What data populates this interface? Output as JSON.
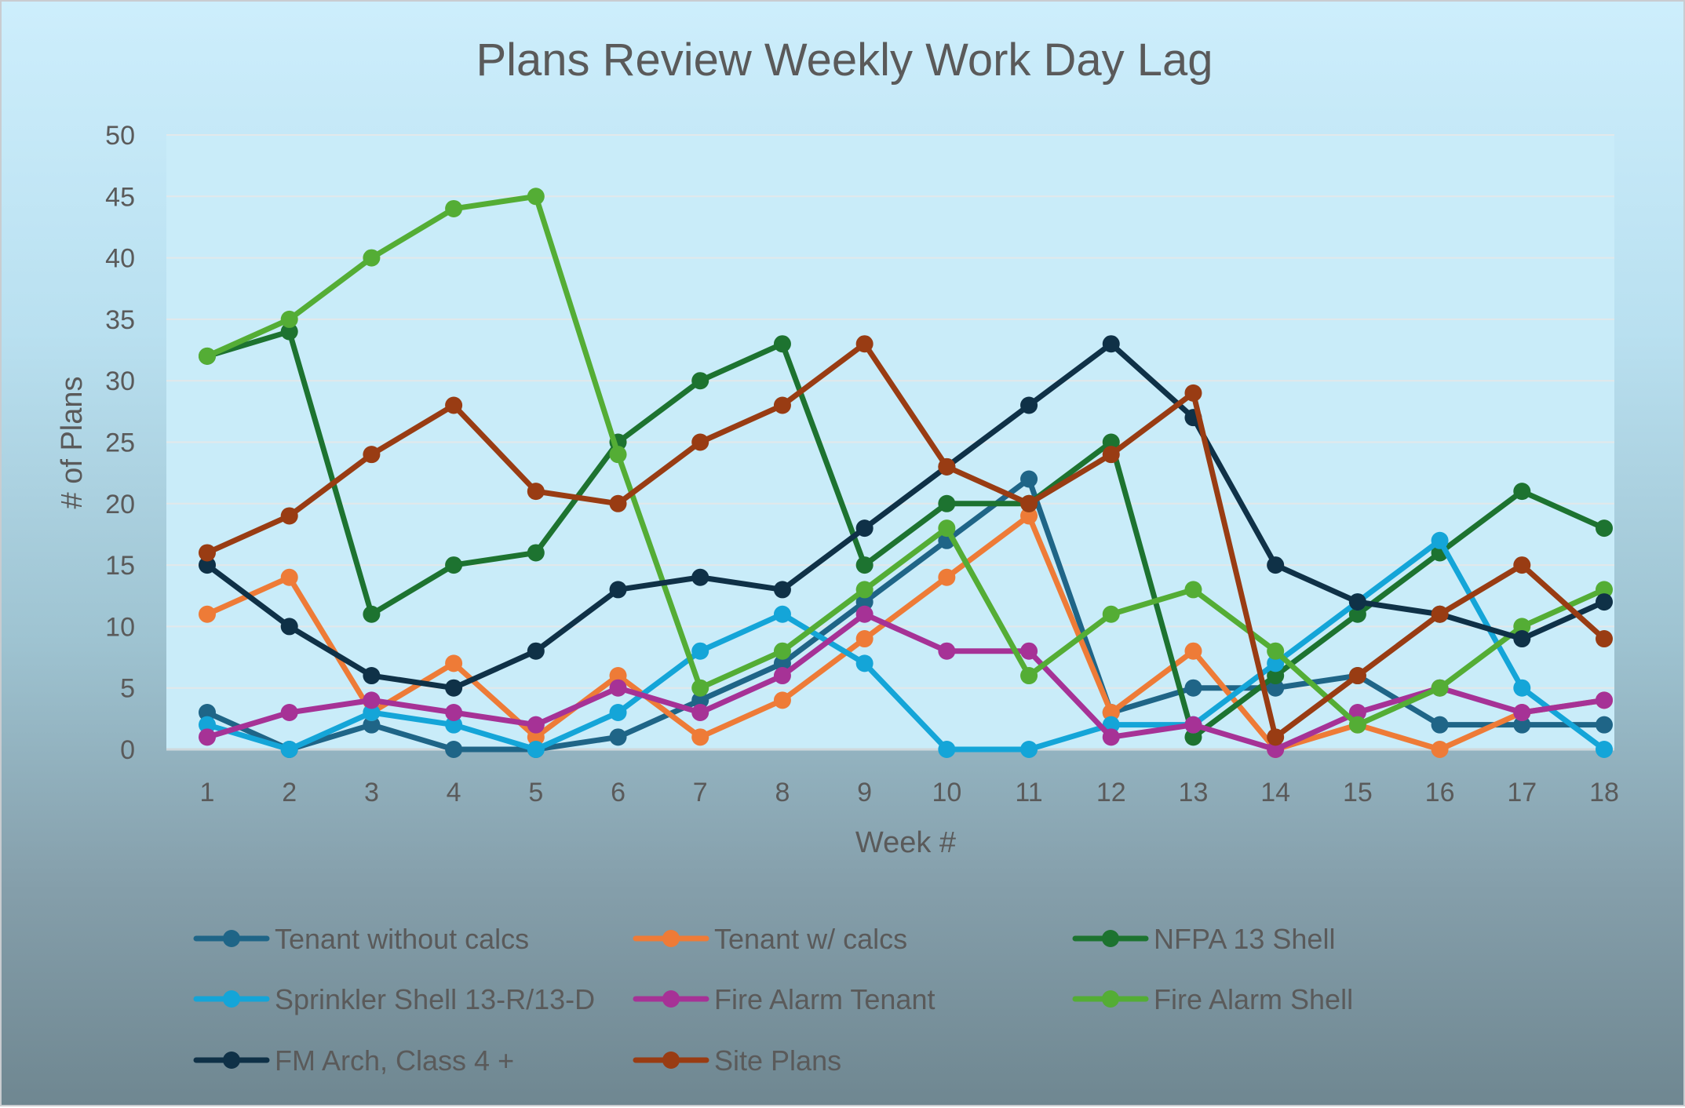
{
  "chart_data": {
    "type": "line",
    "title": "Plans Review Weekly Work Day Lag",
    "xlabel": "Week #",
    "ylabel": "# of Plans",
    "x": [
      1,
      2,
      3,
      4,
      5,
      6,
      7,
      8,
      9,
      10,
      11,
      12,
      13,
      14,
      15,
      16,
      17,
      18
    ],
    "ylim": [
      0,
      50
    ],
    "yticks": [
      0,
      5,
      10,
      15,
      20,
      25,
      30,
      35,
      40,
      45,
      50
    ],
    "grid": "horizontal",
    "legend_position": "bottom",
    "series": [
      {
        "name": "Tenant without calcs",
        "color": "#1f6587",
        "values": [
          3,
          0,
          2,
          0,
          0,
          1,
          4,
          7,
          12,
          17,
          22,
          3,
          5,
          5,
          6,
          2,
          2,
          2
        ]
      },
      {
        "name": "Tenant w/ calcs",
        "color": "#ee7b37",
        "values": [
          11,
          14,
          3,
          7,
          1,
          6,
          1,
          4,
          9,
          14,
          19,
          3,
          8,
          0,
          2,
          0,
          3,
          4
        ]
      },
      {
        "name": "NFPA 13 Shell",
        "color": "#1d7330",
        "values": [
          32,
          34,
          11,
          15,
          16,
          25,
          30,
          33,
          15,
          20,
          20,
          25,
          1,
          6,
          11,
          16,
          21,
          18
        ]
      },
      {
        "name": "Sprinkler Shell 13-R/13-D",
        "color": "#14a5d8",
        "values": [
          2,
          0,
          3,
          2,
          0,
          3,
          8,
          11,
          7,
          0,
          0,
          2,
          2,
          7,
          12,
          17,
          5,
          0
        ]
      },
      {
        "name": "Fire Alarm Tenant",
        "color": "#a63296",
        "values": [
          1,
          3,
          4,
          3,
          2,
          5,
          3,
          6,
          11,
          8,
          8,
          1,
          2,
          0,
          3,
          5,
          3,
          4
        ]
      },
      {
        "name": "Fire Alarm Shell",
        "color": "#54ad35",
        "values": [
          32,
          35,
          40,
          44,
          45,
          24,
          5,
          8,
          13,
          18,
          6,
          11,
          13,
          8,
          2,
          5,
          10,
          13
        ]
      },
      {
        "name": "FM Arch, Class 4 +",
        "color": "#0f3147",
        "values": [
          15,
          10,
          6,
          5,
          8,
          13,
          14,
          13,
          18,
          23,
          28,
          33,
          27,
          15,
          12,
          11,
          9,
          12
        ]
      },
      {
        "name": "Site Plans",
        "color": "#993c13",
        "values": [
          16,
          19,
          24,
          28,
          21,
          20,
          25,
          28,
          33,
          23,
          20,
          24,
          29,
          1,
          6,
          11,
          15,
          9
        ]
      }
    ]
  }
}
